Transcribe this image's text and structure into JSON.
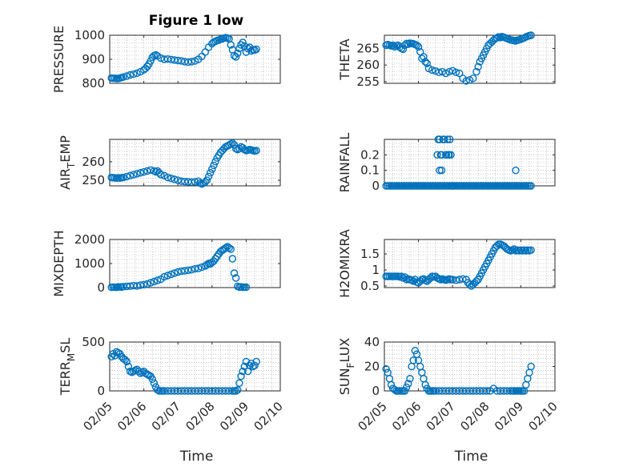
{
  "title": "Figure 1 low",
  "colors": {
    "marker": "#0072BD",
    "axis": "#262626",
    "grid": "#a0a0a0"
  },
  "chart_data": [
    {
      "type": "scatter",
      "id": "pressure",
      "ylabel": "PRESSURE",
      "xlabel": "",
      "ylim": [
        800,
        1000
      ],
      "yticks": [
        800,
        900,
        1000
      ],
      "ytick_labels": [
        "800",
        "900",
        "1000"
      ],
      "xlim": [
        0,
        5
      ],
      "x": [
        0.05,
        0.1,
        0.15,
        0.2,
        0.25,
        0.3,
        0.35,
        0.4,
        0.5,
        0.6,
        0.7,
        0.8,
        0.9,
        1.0,
        1.05,
        1.1,
        1.15,
        1.2,
        1.25,
        1.3,
        1.35,
        1.4,
        1.5,
        1.6,
        1.7,
        1.8,
        1.9,
        2.0,
        2.1,
        2.2,
        2.3,
        2.4,
        2.5,
        2.6,
        2.7,
        2.8,
        2.9,
        3.0,
        3.05,
        3.1,
        3.15,
        3.2,
        3.25,
        3.3,
        3.35,
        3.4,
        3.45,
        3.5,
        3.55,
        3.6,
        3.65,
        3.7,
        3.75,
        3.8,
        3.85,
        3.9,
        3.95,
        4.0,
        4.05,
        4.1,
        4.15,
        4.2,
        4.25,
        4.3
      ],
      "y": [
        822,
        821,
        821,
        820,
        820,
        822,
        824,
        826,
        830,
        835,
        838,
        842,
        848,
        856,
        862,
        870,
        880,
        893,
        908,
        915,
        918,
        914,
        905,
        900,
        901,
        899,
        897,
        895,
        893,
        890,
        888,
        890,
        893,
        900,
        912,
        930,
        950,
        965,
        972,
        975,
        978,
        980,
        983,
        985,
        988,
        990,
        988,
        985,
        960,
        940,
        915,
        910,
        925,
        945,
        960,
        970,
        955,
        930,
        945,
        950,
        935,
        940,
        938,
        942
      ]
    },
    {
      "type": "scatter",
      "id": "theta",
      "ylabel": "THETA",
      "xlabel": "",
      "ylim": [
        254.5,
        269
      ],
      "yticks": [
        255,
        260,
        265
      ],
      "ytick_labels": [
        "255",
        "260",
        "265"
      ],
      "xlim": [
        0,
        5
      ],
      "x": [
        0.05,
        0.1,
        0.15,
        0.2,
        0.25,
        0.3,
        0.35,
        0.4,
        0.45,
        0.5,
        0.55,
        0.6,
        0.65,
        0.7,
        0.75,
        0.8,
        0.85,
        0.9,
        0.95,
        1.0,
        1.05,
        1.1,
        1.15,
        1.2,
        1.25,
        1.3,
        1.4,
        1.5,
        1.6,
        1.7,
        1.8,
        1.9,
        2.0,
        2.1,
        2.2,
        2.3,
        2.4,
        2.5,
        2.6,
        2.7,
        2.75,
        2.8,
        2.85,
        2.9,
        2.95,
        3.0,
        3.05,
        3.1,
        3.15,
        3.2,
        3.25,
        3.3,
        3.35,
        3.4,
        3.45,
        3.5,
        3.55,
        3.6,
        3.65,
        3.7,
        3.75,
        3.8,
        3.85,
        3.9,
        3.95,
        4.0,
        4.05,
        4.1,
        4.15,
        4.2,
        4.25,
        4.3
      ],
      "y": [
        266,
        266.2,
        266,
        265.8,
        266,
        265.5,
        265.8,
        266,
        265.4,
        265,
        264.8,
        266,
        266.5,
        266.3,
        266.6,
        266.5,
        266.4,
        266.2,
        266,
        265.5,
        264,
        262,
        262.5,
        261,
        260.5,
        259,
        258.5,
        258.2,
        257.8,
        258,
        257.5,
        258,
        258.3,
        257.8,
        257.5,
        256,
        255.2,
        255.5,
        256,
        258,
        259.5,
        261,
        262,
        263,
        264,
        265,
        266,
        266.5,
        267,
        267.5,
        268,
        268.2,
        268.5,
        268.3,
        268.6,
        268.4,
        268.2,
        268,
        267.8,
        267.6,
        267.5,
        267.4,
        267.3,
        267.5,
        267.6,
        267.8,
        268,
        268.2,
        268.5,
        268.7,
        268.9,
        269
      ]
    },
    {
      "type": "scatter",
      "id": "air_temp",
      "ylabel": "AIR_TEMP",
      "ylabel_main": "AIR",
      "ylabel_sub": "T",
      "ylabel_rest": "EMP",
      "xlabel": "",
      "ylim": [
        247,
        272
      ],
      "yticks": [
        250,
        260
      ],
      "ytick_labels": [
        "250",
        "260"
      ],
      "xlim": [
        0,
        5
      ],
      "x": [
        0.05,
        0.1,
        0.15,
        0.2,
        0.25,
        0.3,
        0.35,
        0.4,
        0.5,
        0.6,
        0.7,
        0.8,
        0.9,
        1.0,
        1.1,
        1.2,
        1.3,
        1.35,
        1.4,
        1.45,
        1.5,
        1.6,
        1.7,
        1.8,
        1.9,
        2.0,
        2.1,
        2.2,
        2.3,
        2.4,
        2.5,
        2.6,
        2.65,
        2.7,
        2.75,
        2.8,
        2.85,
        2.9,
        2.95,
        3.0,
        3.05,
        3.1,
        3.15,
        3.2,
        3.25,
        3.3,
        3.35,
        3.4,
        3.45,
        3.5,
        3.55,
        3.6,
        3.65,
        3.7,
        3.75,
        3.8,
        3.85,
        3.9,
        3.95,
        4.0,
        4.05,
        4.1,
        4.15,
        4.2,
        4.25,
        4.3
      ],
      "y": [
        251.5,
        251.4,
        251.3,
        251.2,
        251.3,
        251.2,
        251.4,
        251.5,
        252,
        252.5,
        253,
        253.5,
        254,
        254.5,
        255,
        255.5,
        255,
        254.5,
        255,
        254,
        253,
        252.5,
        251.5,
        251,
        250.5,
        250,
        249.5,
        249.3,
        249.2,
        249,
        249.2,
        249.5,
        248.5,
        248,
        248.5,
        249,
        250,
        252,
        254,
        256,
        258,
        260,
        262,
        263.5,
        265,
        266,
        267,
        268,
        268.5,
        269,
        269.5,
        270,
        269,
        267,
        266.5,
        267,
        268,
        267.5,
        266.5,
        266,
        266.2,
        266.5,
        266.3,
        266,
        265.8,
        266
      ]
    },
    {
      "type": "scatter",
      "id": "rainfall",
      "ylabel": "RAINFALL",
      "xlabel": "",
      "ylim": [
        0,
        0.3
      ],
      "yticks": [
        0,
        0.1,
        0.2
      ],
      "ytick_labels": [
        "0",
        "0.1",
        "0.2"
      ],
      "xlim": [
        0,
        5
      ],
      "x": [
        0.05,
        0.1,
        0.15,
        0.2,
        0.25,
        0.3,
        0.35,
        0.4,
        0.45,
        0.5,
        0.55,
        0.6,
        0.65,
        0.7,
        0.75,
        0.8,
        0.85,
        0.9,
        0.95,
        1.0,
        1.05,
        1.1,
        1.15,
        1.2,
        1.25,
        1.3,
        1.35,
        1.4,
        1.45,
        1.5,
        1.55,
        1.6,
        1.65,
        1.7,
        1.75,
        1.8,
        1.85,
        1.9,
        1.95,
        2.0,
        2.05,
        2.1,
        2.15,
        2.2,
        2.25,
        2.3,
        2.35,
        2.4,
        2.45,
        2.5,
        2.55,
        2.6,
        2.65,
        2.7,
        2.75,
        2.8,
        2.85,
        2.9,
        2.95,
        3.0,
        3.05,
        3.1,
        3.15,
        3.2,
        3.25,
        3.3,
        3.35,
        3.4,
        3.45,
        3.5,
        3.55,
        3.6,
        3.65,
        3.7,
        3.75,
        3.8,
        3.85,
        3.9,
        3.95,
        4.0,
        4.05,
        4.1,
        4.15,
        4.2,
        4.25,
        4.3,
        1.55,
        1.58,
        1.62,
        1.65,
        1.68,
        1.72,
        1.75,
        1.8,
        1.82,
        1.85,
        1.88,
        1.92,
        1.95,
        1.98,
        2.0,
        1.62,
        1.68,
        1.9,
        3.85
      ],
      "y": [
        0,
        0,
        0,
        0,
        0,
        0,
        0,
        0,
        0,
        0,
        0,
        0,
        0,
        0,
        0,
        0,
        0,
        0,
        0,
        0,
        0,
        0,
        0,
        0,
        0,
        0,
        0,
        0,
        0,
        0,
        0,
        0,
        0,
        0,
        0,
        0,
        0,
        0,
        0,
        0,
        0,
        0,
        0,
        0,
        0,
        0,
        0,
        0,
        0,
        0,
        0,
        0,
        0,
        0,
        0,
        0,
        0,
        0,
        0,
        0,
        0,
        0,
        0,
        0,
        0,
        0,
        0,
        0,
        0,
        0,
        0,
        0,
        0,
        0,
        0,
        0,
        0,
        0,
        0,
        0,
        0,
        0,
        0,
        0,
        0,
        0,
        0.2,
        0.3,
        0.3,
        0.2,
        0.2,
        0.3,
        0.3,
        0.2,
        0.2,
        0.3,
        0.2,
        0.3,
        0.2,
        0,
        0,
        0.1,
        0.1,
        0.2,
        0.1
      ]
    },
    {
      "type": "scatter",
      "id": "mixdepth",
      "ylabel": "MIXDEPTH",
      "xlabel": "",
      "ylim": [
        0,
        2000
      ],
      "yticks": [
        0,
        1000,
        2000
      ],
      "ytick_labels": [
        "0",
        "1000",
        "2000"
      ],
      "xlim": [
        0,
        5
      ],
      "x": [
        0.05,
        0.1,
        0.15,
        0.2,
        0.25,
        0.3,
        0.35,
        0.4,
        0.5,
        0.6,
        0.7,
        0.8,
        0.9,
        1.0,
        1.1,
        1.2,
        1.3,
        1.4,
        1.5,
        1.6,
        1.7,
        1.8,
        1.9,
        2.0,
        2.1,
        2.2,
        2.3,
        2.4,
        2.5,
        2.6,
        2.7,
        2.8,
        2.85,
        2.9,
        2.95,
        3.0,
        3.05,
        3.1,
        3.15,
        3.2,
        3.25,
        3.3,
        3.35,
        3.4,
        3.45,
        3.5,
        3.55,
        3.6,
        3.65,
        3.7,
        3.75,
        3.8,
        3.85,
        3.9,
        3.95,
        4.0
      ],
      "y": [
        10,
        20,
        15,
        10,
        25,
        30,
        20,
        40,
        50,
        60,
        80,
        70,
        100,
        120,
        150,
        200,
        250,
        300,
        350,
        450,
        500,
        550,
        600,
        650,
        680,
        700,
        720,
        740,
        780,
        800,
        850,
        900,
        950,
        1000,
        980,
        1050,
        1100,
        1200,
        1300,
        1400,
        1500,
        1550,
        1600,
        1650,
        1700,
        1650,
        1600,
        1200,
        600,
        400,
        50,
        20,
        30,
        10,
        20,
        15
      ]
    },
    {
      "type": "scatter",
      "id": "h2omixra",
      "ylabel": "H2OMIXRA",
      "xlabel": "",
      "ylim": [
        0.45,
        1.95
      ],
      "yticks": [
        0.5,
        1,
        1.5
      ],
      "ytick_labels": [
        "0.5",
        "1",
        "1.5"
      ],
      "xlim": [
        0,
        5
      ],
      "x": [
        0.05,
        0.1,
        0.15,
        0.2,
        0.25,
        0.3,
        0.35,
        0.4,
        0.45,
        0.5,
        0.55,
        0.6,
        0.65,
        0.7,
        0.75,
        0.8,
        0.85,
        0.9,
        0.95,
        1.0,
        1.05,
        1.1,
        1.15,
        1.2,
        1.25,
        1.3,
        1.35,
        1.4,
        1.45,
        1.5,
        1.55,
        1.6,
        1.65,
        1.7,
        1.75,
        1.8,
        1.85,
        1.9,
        1.95,
        2.0,
        2.1,
        2.2,
        2.3,
        2.4,
        2.45,
        2.5,
        2.55,
        2.6,
        2.65,
        2.7,
        2.75,
        2.8,
        2.85,
        2.9,
        2.95,
        3.0,
        3.05,
        3.1,
        3.15,
        3.2,
        3.25,
        3.3,
        3.35,
        3.4,
        3.45,
        3.5,
        3.55,
        3.6,
        3.65,
        3.7,
        3.75,
        3.8,
        3.85,
        3.9,
        3.95,
        4.0,
        4.05,
        4.1,
        4.15,
        4.2,
        4.25,
        4.3
      ],
      "y": [
        0.8,
        0.8,
        0.8,
        0.8,
        0.8,
        0.8,
        0.8,
        0.8,
        0.78,
        0.8,
        0.75,
        0.78,
        0.7,
        0.72,
        0.7,
        0.68,
        0.65,
        0.7,
        0.62,
        0.6,
        0.65,
        0.7,
        0.72,
        0.68,
        0.65,
        0.7,
        0.75,
        0.8,
        0.78,
        0.8,
        0.75,
        0.72,
        0.7,
        0.72,
        0.7,
        0.68,
        0.7,
        0.72,
        0.7,
        0.7,
        0.68,
        0.7,
        0.72,
        0.7,
        0.6,
        0.55,
        0.5,
        0.55,
        0.6,
        0.65,
        0.7,
        0.8,
        0.9,
        1.0,
        1.1,
        1.2,
        1.3,
        1.4,
        1.5,
        1.6,
        1.7,
        1.75,
        1.8,
        1.8,
        1.78,
        1.75,
        1.7,
        1.65,
        1.62,
        1.6,
        1.62,
        1.65,
        1.6,
        1.62,
        1.6,
        1.62,
        1.6,
        1.62,
        1.6,
        1.62,
        1.6,
        1.62
      ]
    },
    {
      "type": "scatter",
      "id": "terr_msl",
      "ylabel": "TERR_MSL",
      "ylabel_main": "TERR",
      "ylabel_sub": "M",
      "ylabel_rest": "SL",
      "xlabel": "Time",
      "ylim": [
        0,
        500
      ],
      "yticks": [
        0,
        500
      ],
      "ytick_labels": [
        "0",
        "500"
      ],
      "xlim": [
        0,
        5
      ],
      "xticks": [
        0,
        1,
        2,
        3,
        4,
        5
      ],
      "xtick_labels": [
        "02/05",
        "02/06",
        "02/07",
        "02/08",
        "02/09",
        "02/10"
      ],
      "x": [
        0.05,
        0.1,
        0.15,
        0.2,
        0.25,
        0.3,
        0.35,
        0.4,
        0.45,
        0.5,
        0.55,
        0.6,
        0.65,
        0.7,
        0.75,
        0.8,
        0.85,
        0.9,
        0.95,
        1.0,
        1.05,
        1.1,
        1.15,
        1.2,
        1.25,
        1.3,
        1.35,
        1.4,
        1.45,
        1.5,
        1.55,
        1.6,
        1.7,
        1.8,
        1.9,
        2.0,
        2.1,
        2.2,
        2.3,
        2.4,
        2.5,
        2.6,
        2.7,
        2.8,
        2.9,
        3.0,
        3.1,
        3.2,
        3.3,
        3.4,
        3.5,
        3.6,
        3.65,
        3.7,
        3.75,
        3.8,
        3.85,
        3.9,
        3.95,
        4.0,
        4.05,
        4.1,
        4.15,
        4.2,
        4.25,
        4.3
      ],
      "y": [
        350,
        380,
        360,
        400,
        390,
        380,
        350,
        330,
        320,
        300,
        250,
        200,
        190,
        200,
        210,
        220,
        200,
        180,
        190,
        200,
        180,
        170,
        160,
        150,
        120,
        80,
        40,
        10,
        0,
        0,
        0,
        0,
        0,
        0,
        0,
        0,
        0,
        0,
        0,
        0,
        0,
        0,
        0,
        0,
        0,
        0,
        0,
        0,
        0,
        0,
        0,
        0,
        0,
        0,
        10,
        80,
        150,
        200,
        250,
        300,
        200,
        260,
        280,
        250,
        260,
        300
      ]
    },
    {
      "type": "scatter",
      "id": "sun_flux",
      "ylabel": "SUN_FLUX",
      "ylabel_main": "SUN",
      "ylabel_sub": "F",
      "ylabel_rest": "LUX",
      "xlabel": "Time",
      "ylim": [
        0,
        40
      ],
      "yticks": [
        0,
        20,
        40
      ],
      "ytick_labels": [
        "0",
        "20",
        "40"
      ],
      "xlim": [
        0,
        5
      ],
      "xticks": [
        0,
        1,
        2,
        3,
        4,
        5
      ],
      "xtick_labels": [
        "02/05",
        "02/06",
        "02/07",
        "02/08",
        "02/09",
        "02/10"
      ],
      "x": [
        0.05,
        0.1,
        0.15,
        0.2,
        0.25,
        0.3,
        0.35,
        0.4,
        0.45,
        0.5,
        0.55,
        0.6,
        0.65,
        0.7,
        0.75,
        0.8,
        0.85,
        0.9,
        0.95,
        1.0,
        1.05,
        1.1,
        1.15,
        1.2,
        1.25,
        1.3,
        1.35,
        1.4,
        1.45,
        1.5,
        1.6,
        1.7,
        1.8,
        1.9,
        2.0,
        2.1,
        2.2,
        2.3,
        2.4,
        2.5,
        2.6,
        2.7,
        2.8,
        2.9,
        3.0,
        3.1,
        3.2,
        3.3,
        3.4,
        3.5,
        3.6,
        3.7,
        3.75,
        3.8,
        3.85,
        3.9,
        3.95,
        4.0,
        4.05,
        4.1,
        4.15,
        4.2,
        4.25,
        4.3
      ],
      "y": [
        18,
        15,
        10,
        5,
        2,
        1,
        0,
        0,
        0,
        0,
        0,
        0,
        3,
        6,
        10,
        20,
        25,
        33,
        30,
        25,
        20,
        15,
        10,
        5,
        2,
        0,
        0,
        0,
        0,
        0,
        0,
        0,
        0,
        0,
        0,
        0,
        0,
        0,
        0,
        0,
        0,
        0,
        0,
        0,
        0,
        0,
        2,
        0,
        0,
        0,
        0,
        0,
        0,
        0,
        0,
        0,
        0,
        0,
        0,
        0,
        5,
        10,
        15,
        20
      ]
    }
  ]
}
